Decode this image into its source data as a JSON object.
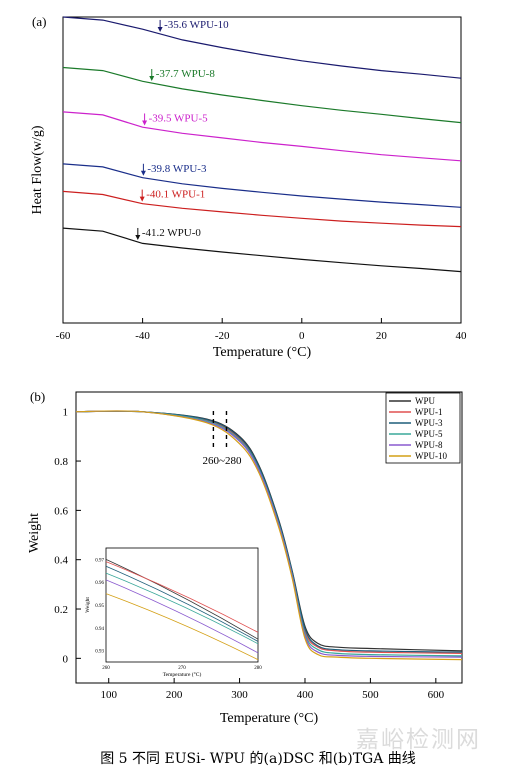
{
  "caption": "图 5 不同 EUSi- WPU 的(a)DSC 和(b)TGA 曲线",
  "watermark": "嘉峪检测网",
  "chart_data": [
    {
      "type": "line",
      "panel_label": "(a)",
      "xlabel": "Temperature (°C)",
      "ylabel": "Heat Flow(w/g)",
      "xlim": [
        -60,
        40
      ],
      "x_ticks": [
        -60,
        -40,
        -20,
        0,
        20,
        40
      ],
      "y_ticks_shown": false,
      "series": [
        {
          "name": "WPU-10",
          "color": "#1a1a6e",
          "tg": -35.6,
          "annotation": "-35.6 WPU-10",
          "x": [
            -60,
            -50,
            -40,
            -30,
            -20,
            -10,
            0,
            10,
            20,
            30,
            40
          ],
          "y": [
            1.0,
            0.99,
            0.96,
            0.925,
            0.9,
            0.877,
            0.857,
            0.84,
            0.825,
            0.813,
            0.8
          ]
        },
        {
          "name": "WPU-8",
          "color": "#1b7a2a",
          "tg": -37.7,
          "annotation": "-37.7 WPU-8",
          "x": [
            -60,
            -50,
            -40,
            -30,
            -20,
            -10,
            0,
            10,
            20,
            30,
            40
          ],
          "y": [
            0.835,
            0.825,
            0.79,
            0.765,
            0.745,
            0.727,
            0.71,
            0.695,
            0.682,
            0.668,
            0.655
          ]
        },
        {
          "name": "WPU-5",
          "color": "#cc22cc",
          "tg": -39.5,
          "annotation": "-39.5 WPU-5",
          "x": [
            -60,
            -50,
            -40,
            -30,
            -20,
            -10,
            0,
            10,
            20,
            30,
            40
          ],
          "y": [
            0.69,
            0.68,
            0.64,
            0.62,
            0.605,
            0.59,
            0.577,
            0.563,
            0.55,
            0.54,
            0.53
          ]
        },
        {
          "name": "WPU-3",
          "color": "#1a2e8a",
          "tg": -39.8,
          "annotation": "-39.8 WPU-3",
          "x": [
            -60,
            -50,
            -40,
            -30,
            -20,
            -10,
            0,
            10,
            20,
            30,
            40
          ],
          "y": [
            0.52,
            0.51,
            0.475,
            0.455,
            0.44,
            0.427,
            0.415,
            0.405,
            0.395,
            0.387,
            0.378
          ]
        },
        {
          "name": "WPU-1",
          "color": "#cc1f1f",
          "tg": -40.1,
          "annotation": "-40.1 WPU-1",
          "x": [
            -60,
            -50,
            -40,
            -30,
            -20,
            -10,
            0,
            10,
            20,
            30,
            40
          ],
          "y": [
            0.43,
            0.42,
            0.39,
            0.375,
            0.363,
            0.352,
            0.342,
            0.333,
            0.326,
            0.32,
            0.315
          ]
        },
        {
          "name": "WPU-0",
          "color": "#111111",
          "tg": -41.2,
          "annotation": "-41.2 WPU-0",
          "x": [
            -60,
            -50,
            -40,
            -30,
            -20,
            -10,
            0,
            10,
            20,
            30,
            40
          ],
          "y": [
            0.31,
            0.3,
            0.26,
            0.245,
            0.232,
            0.22,
            0.208,
            0.197,
            0.187,
            0.178,
            0.168
          ]
        }
      ]
    },
    {
      "type": "line",
      "panel_label": "(b)",
      "xlabel": "Temperature (°C)",
      "ylabel": "Weight",
      "xlim": [
        50,
        640
      ],
      "ylim": [
        -0.1,
        1.08
      ],
      "x_ticks": [
        100,
        200,
        300,
        400,
        500,
        600
      ],
      "y_ticks": [
        0,
        0.2,
        0.4,
        0.6,
        0.8,
        1
      ],
      "legend_position": "top-right",
      "annotation": "260~280",
      "dashed_lines_x": [
        260,
        280
      ],
      "series": [
        {
          "name": "WPU",
          "color": "#333333",
          "x": [
            50,
            150,
            250,
            300,
            330,
            360,
            380,
            400,
            420,
            450,
            500,
            640
          ],
          "y": [
            1.0,
            1.0,
            0.97,
            0.9,
            0.78,
            0.56,
            0.36,
            0.13,
            0.06,
            0.045,
            0.04,
            0.03
          ]
        },
        {
          "name": "WPU-1",
          "color": "#e05050",
          "x": [
            50,
            150,
            250,
            300,
            330,
            360,
            380,
            400,
            420,
            450,
            500,
            640
          ],
          "y": [
            1.0,
            1.0,
            0.965,
            0.89,
            0.77,
            0.55,
            0.35,
            0.11,
            0.045,
            0.03,
            0.025,
            0.02
          ]
        },
        {
          "name": "WPU-3",
          "color": "#1f5f7a",
          "x": [
            50,
            150,
            250,
            300,
            330,
            360,
            380,
            400,
            420,
            450,
            500,
            640
          ],
          "y": [
            1.0,
            1.0,
            0.968,
            0.895,
            0.775,
            0.555,
            0.355,
            0.12,
            0.05,
            0.035,
            0.03,
            0.025
          ]
        },
        {
          "name": "WPU-5",
          "color": "#3aa89a",
          "x": [
            50,
            150,
            250,
            300,
            330,
            360,
            380,
            400,
            420,
            450,
            500,
            640
          ],
          "y": [
            1.0,
            1.0,
            0.962,
            0.885,
            0.765,
            0.545,
            0.345,
            0.1,
            0.035,
            0.02,
            0.015,
            0.01
          ]
        },
        {
          "name": "WPU-8",
          "color": "#8a5acf",
          "x": [
            50,
            150,
            250,
            300,
            330,
            360,
            380,
            400,
            420,
            450,
            500,
            640
          ],
          "y": [
            1.0,
            1.0,
            0.958,
            0.88,
            0.76,
            0.54,
            0.34,
            0.09,
            0.025,
            0.012,
            0.008,
            0.005
          ]
        },
        {
          "name": "WPU-10",
          "color": "#d4a017",
          "x": [
            50,
            150,
            250,
            300,
            330,
            360,
            380,
            400,
            420,
            450,
            500,
            640
          ],
          "y": [
            1.0,
            1.0,
            0.955,
            0.87,
            0.75,
            0.53,
            0.33,
            0.08,
            0.015,
            0.005,
            0.0,
            -0.005
          ]
        }
      ],
      "inset": {
        "xlabel": "Temperature (°C)",
        "ylabel": "Weight",
        "xlim": [
          260,
          280
        ],
        "ylim": [
          0.925,
          0.975
        ],
        "x_ticks": [
          260,
          270,
          280
        ],
        "y_ticks": [
          0.93,
          0.94,
          0.95,
          0.96,
          0.97
        ],
        "series": [
          {
            "name": "WPU",
            "x": [
              260,
              280
            ],
            "y": [
              0.97,
              0.935
            ]
          },
          {
            "name": "WPU-1",
            "x": [
              260,
              280
            ],
            "y": [
              0.969,
              0.938
            ]
          },
          {
            "name": "WPU-3",
            "x": [
              260,
              280
            ],
            "y": [
              0.967,
              0.934
            ]
          },
          {
            "name": "WPU-5",
            "x": [
              260,
              280
            ],
            "y": [
              0.964,
              0.933
            ]
          },
          {
            "name": "WPU-8",
            "x": [
              260,
              280
            ],
            "y": [
              0.961,
              0.929
            ]
          },
          {
            "name": "WPU-10",
            "x": [
              260,
              280
            ],
            "y": [
              0.955,
              0.926
            ]
          }
        ]
      }
    }
  ]
}
